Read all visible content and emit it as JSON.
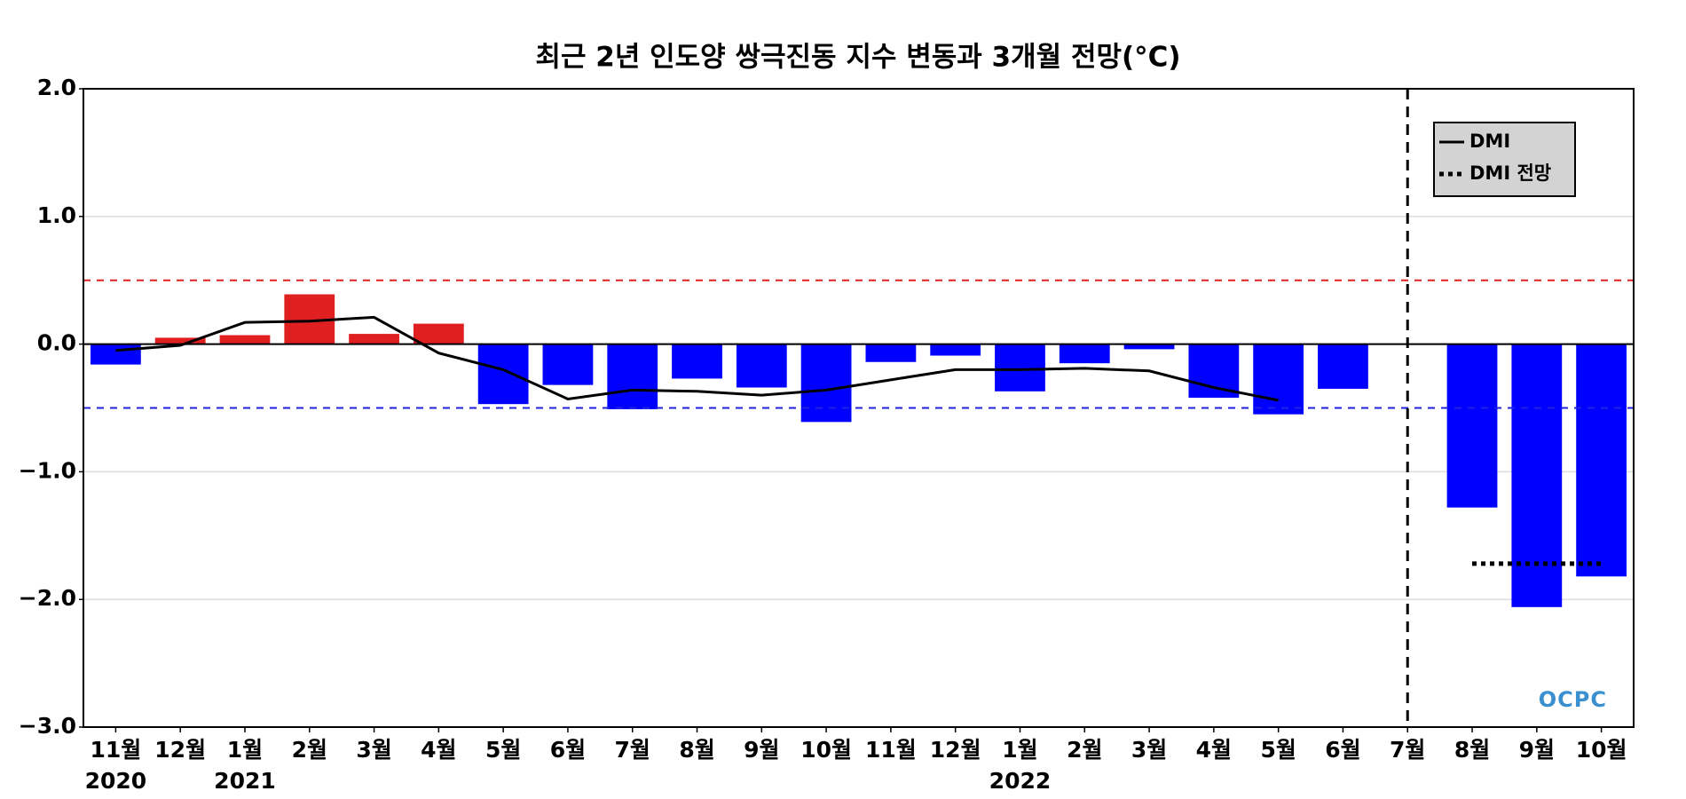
{
  "chart_data": {
    "type": "bar",
    "title": "최근 2년 인도양 쌍극진동 지수 변동과 3개월 전망(°C)",
    "categories": [
      "11월",
      "12월",
      "1월",
      "2월",
      "3월",
      "4월",
      "5월",
      "6월",
      "7월",
      "8월",
      "9월",
      "10월",
      "11월",
      "12월",
      "1월",
      "2월",
      "3월",
      "4월",
      "5월",
      "6월",
      "7월",
      "8월",
      "9월",
      "10월"
    ],
    "year_labels": [
      "2020",
      null,
      "2021",
      null,
      null,
      null,
      null,
      null,
      null,
      null,
      null,
      null,
      null,
      null,
      "2022",
      null,
      null,
      null,
      null,
      null,
      null,
      null,
      null,
      null
    ],
    "values": [
      -0.16,
      0.05,
      0.07,
      0.39,
      0.08,
      0.16,
      -0.47,
      -0.32,
      -0.51,
      -0.27,
      -0.34,
      -0.61,
      -0.14,
      -0.09,
      -0.37,
      -0.15,
      -0.04,
      -0.42,
      -0.55,
      -0.35,
      null,
      -1.28,
      -2.06,
      -1.82
    ],
    "bar_colors": {
      "positive": "#e02020",
      "negative": "#0000ff"
    },
    "series": [
      {
        "name": "DMI",
        "color": "#000000",
        "style": "solid",
        "values": [
          -0.05,
          -0.01,
          0.17,
          0.18,
          0.21,
          -0.07,
          -0.2,
          -0.43,
          -0.36,
          -0.37,
          -0.4,
          -0.36,
          -0.28,
          -0.2,
          -0.2,
          -0.19,
          -0.21,
          -0.34,
          -0.44,
          null,
          null,
          null,
          null,
          null
        ]
      },
      {
        "name": "DMI 전망",
        "color": "#000000",
        "style": "dotted",
        "values": [
          null,
          null,
          null,
          null,
          null,
          null,
          null,
          null,
          null,
          null,
          null,
          null,
          null,
          null,
          null,
          null,
          null,
          null,
          null,
          null,
          null,
          -1.72,
          -1.72,
          -1.72
        ]
      }
    ],
    "ylim": [
      -3,
      2
    ],
    "yticks": [
      {
        "value": -3,
        "label": "−3.0"
      },
      {
        "value": -2,
        "label": "−2.0"
      },
      {
        "value": -1,
        "label": "−1.0"
      },
      {
        "value": 0,
        "label": "0.0"
      },
      {
        "value": 1,
        "label": "1.0"
      },
      {
        "value": 2,
        "label": "2.0"
      }
    ],
    "grid": true,
    "hlines": [
      {
        "value": 0.5,
        "color": "#e02020",
        "style": "dashed"
      },
      {
        "value": -0.5,
        "color": "#2020e0",
        "style": "dashed"
      },
      {
        "value": 0,
        "color": "#000000",
        "style": "solid"
      }
    ],
    "vline_index": 20,
    "legend": "upper right",
    "logo": "OCPC"
  }
}
